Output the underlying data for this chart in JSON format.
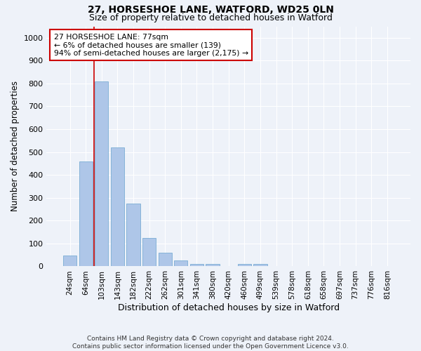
{
  "title1": "27, HORSESHOE LANE, WATFORD, WD25 0LN",
  "title2": "Size of property relative to detached houses in Watford",
  "xlabel": "Distribution of detached houses by size in Watford",
  "ylabel": "Number of detached properties",
  "categories": [
    "24sqm",
    "64sqm",
    "103sqm",
    "143sqm",
    "182sqm",
    "222sqm",
    "262sqm",
    "301sqm",
    "341sqm",
    "380sqm",
    "420sqm",
    "460sqm",
    "499sqm",
    "539sqm",
    "578sqm",
    "618sqm",
    "658sqm",
    "697sqm",
    "737sqm",
    "776sqm",
    "816sqm"
  ],
  "values": [
    48,
    460,
    810,
    520,
    275,
    125,
    60,
    25,
    10,
    10,
    0,
    10,
    10,
    0,
    0,
    0,
    0,
    0,
    0,
    0,
    0
  ],
  "bar_color": "#aec6e8",
  "bar_edge_color": "#7aadd4",
  "marker_line_color": "#cc0000",
  "annotation_line1": "27 HORSESHOE LANE: 77sqm",
  "annotation_line2": "← 6% of detached houses are smaller (139)",
  "annotation_line3": "94% of semi-detached houses are larger (2,175) →",
  "annotation_box_color": "#cc0000",
  "ylim": [
    0,
    1050
  ],
  "yticks": [
    0,
    100,
    200,
    300,
    400,
    500,
    600,
    700,
    800,
    900,
    1000
  ],
  "footer1": "Contains HM Land Registry data © Crown copyright and database right 2024.",
  "footer2": "Contains public sector information licensed under the Open Government Licence v3.0.",
  "bg_color": "#eef2f9",
  "plot_bg_color": "#eef2f9",
  "grid_color": "#ffffff",
  "title1_fontsize": 10,
  "title2_fontsize": 9
}
